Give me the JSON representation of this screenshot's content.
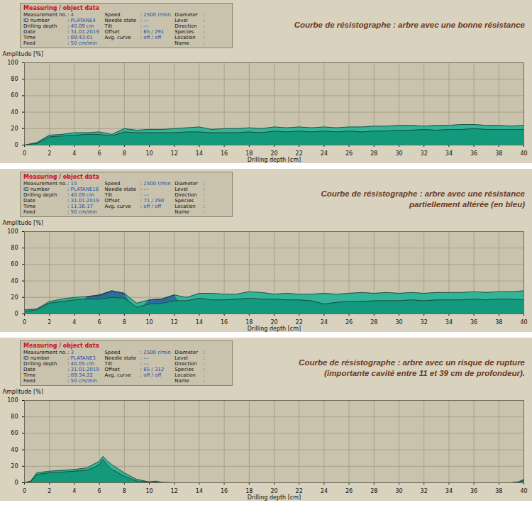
{
  "chart_data": [
    {
      "type": "area",
      "title": [
        "Courbe de résistographe : arbre avec une bonne résistance"
      ],
      "info_box": {
        "title": "Measuring / object data",
        "columns": [
          [
            {
              "label": "Measurement no.",
              "value": "4"
            },
            {
              "label": "ID number",
              "value": "PLATANE4"
            },
            {
              "label": "Drilling depth",
              "value": "40.09 cm"
            },
            {
              "label": "Date",
              "value": "31.01.2019"
            },
            {
              "label": "Time",
              "value": "09:43:01"
            },
            {
              "label": "Feed",
              "value": "50 cm/min"
            }
          ],
          [
            {
              "label": "Speed",
              "value": "2500 r/min"
            },
            {
              "label": "Needle state",
              "value": "---"
            },
            {
              "label": "Tilt",
              "value": "---"
            },
            {
              "label": "Offset",
              "value": "65 / 291"
            },
            {
              "label": "Avg. curve",
              "value": "off / off"
            }
          ],
          [
            {
              "label": "Diameter"
            },
            {
              "label": "Level"
            },
            {
              "label": "Direction"
            },
            {
              "label": "Species"
            },
            {
              "label": "Location"
            },
            {
              "label": "Name"
            }
          ]
        ]
      },
      "xlabel": "Drilling depth [cm]",
      "ylabel": "Amplitude [%]",
      "x": [
        0,
        1,
        2,
        3,
        4,
        5,
        6,
        7,
        8,
        9,
        10,
        11,
        12,
        13,
        14,
        15,
        16,
        17,
        18,
        19,
        20,
        21,
        22,
        23,
        24,
        25,
        26,
        27,
        28,
        29,
        30,
        31,
        32,
        33,
        34,
        35,
        36,
        37,
        38,
        39,
        40
      ],
      "series": [
        {
          "color": "#34b497",
          "values": [
            0,
            3,
            12,
            13,
            15,
            15,
            16,
            13,
            20,
            18,
            19,
            19,
            20,
            21,
            22,
            19,
            20,
            20,
            21,
            20,
            22,
            21,
            22,
            21,
            22,
            21,
            22,
            22,
            23,
            23,
            24,
            24,
            23,
            24,
            24,
            25,
            25,
            24,
            24,
            23,
            24
          ]
        },
        {
          "color": "#13997c",
          "values": [
            0,
            2,
            10,
            11,
            12,
            13,
            13,
            11,
            16,
            15,
            15,
            15,
            15,
            16,
            16,
            15,
            15,
            15,
            16,
            15,
            17,
            16,
            17,
            16,
            17,
            16,
            17,
            16,
            17,
            17,
            18,
            18,
            19,
            18,
            19,
            19,
            20,
            19,
            19,
            19,
            19
          ]
        }
      ],
      "xlim": [
        0,
        40
      ],
      "xticks": [
        0,
        2,
        4,
        6,
        8,
        10,
        12,
        14,
        16,
        18,
        20,
        22,
        24,
        26,
        28,
        30,
        32,
        34,
        36,
        38,
        40
      ],
      "ylim": [
        0,
        100
      ],
      "yticks": [
        0,
        20,
        40,
        60,
        80,
        100
      ],
      "grid": true
    },
    {
      "type": "area",
      "title": [
        "Courbe de résistographe : arbre avec une résistance",
        "partiellement altérée (en bleu)"
      ],
      "info_box": {
        "title": "Measuring / object data",
        "columns": [
          [
            {
              "label": "Measurement no.",
              "value": "15"
            },
            {
              "label": "ID number",
              "value": "PLATANE16"
            },
            {
              "label": "Drilling depth",
              "value": "40.09 cm"
            },
            {
              "label": "Date",
              "value": "31.01.2019"
            },
            {
              "label": "Time",
              "value": "11:36:17"
            },
            {
              "label": "Feed",
              "value": "50 cm/min"
            }
          ],
          [
            {
              "label": "Speed",
              "value": "2500 r/min"
            },
            {
              "label": "Needle state",
              "value": "---"
            },
            {
              "label": "Tilt",
              "value": "---"
            },
            {
              "label": "Offset",
              "value": "71 / 290"
            },
            {
              "label": "Avg. curve",
              "value": "off / off"
            }
          ],
          [
            {
              "label": "Diameter"
            },
            {
              "label": "Level"
            },
            {
              "label": "Direction"
            },
            {
              "label": "Species"
            },
            {
              "label": "Location"
            },
            {
              "label": "Name"
            }
          ]
        ]
      },
      "xlabel": "Drilling depth [cm]",
      "ylabel": "Amplitude [%]",
      "x": [
        0,
        1,
        2,
        3,
        4,
        5,
        6,
        7,
        8,
        9,
        10,
        11,
        12,
        13,
        14,
        15,
        16,
        17,
        18,
        19,
        20,
        21,
        22,
        23,
        24,
        25,
        26,
        27,
        28,
        29,
        30,
        31,
        32,
        33,
        34,
        35,
        36,
        37,
        38,
        39,
        40
      ],
      "series": [
        {
          "color": "#34b497",
          "values": [
            5,
            6,
            15,
            18,
            20,
            21,
            22,
            28,
            25,
            13,
            17,
            18,
            23,
            20,
            25,
            25,
            24,
            24,
            27,
            26,
            24,
            25,
            24,
            24,
            25,
            24,
            25,
            26,
            25,
            26,
            25,
            26,
            25,
            26,
            26,
            26,
            27,
            26,
            27,
            27,
            28
          ]
        },
        {
          "color": "#2a6e9e",
          "values": [
            null,
            null,
            null,
            null,
            null,
            21,
            23,
            28,
            25,
            null,
            17,
            18,
            23,
            null,
            null,
            null,
            null,
            null,
            null,
            null,
            null,
            null,
            null,
            null,
            null,
            null,
            null,
            null,
            null,
            null,
            null,
            null,
            null,
            null,
            null,
            null,
            null,
            null,
            null,
            null,
            null
          ]
        },
        {
          "color": "#13997c",
          "values": [
            3,
            5,
            13,
            15,
            17,
            18,
            18,
            20,
            19,
            8,
            12,
            13,
            16,
            16,
            19,
            17,
            17,
            18,
            19,
            18,
            18,
            17,
            17,
            16,
            12,
            14,
            15,
            15,
            16,
            16,
            16,
            17,
            16,
            17,
            17,
            17,
            18,
            17,
            18,
            18,
            17
          ]
        }
      ],
      "xlim": [
        0,
        40
      ],
      "xticks": [
        0,
        2,
        4,
        6,
        8,
        10,
        12,
        14,
        16,
        18,
        20,
        22,
        24,
        26,
        28,
        30,
        32,
        34,
        36,
        38,
        40
      ],
      "ylim": [
        0,
        100
      ],
      "yticks": [
        0,
        20,
        40,
        60,
        80,
        100
      ],
      "grid": true
    },
    {
      "type": "area",
      "title": [
        "Courbe de résistographe : arbre avec un risque de rupture",
        "(importante cavité entre 11 et 39 cm de profondeur)."
      ],
      "info_box": {
        "title": "Measuring / object data",
        "columns": [
          [
            {
              "label": "Measurement no.",
              "value": "3"
            },
            {
              "label": "ID number",
              "value": "PLATANE3"
            },
            {
              "label": "Drilling depth",
              "value": "40.05 cm"
            },
            {
              "label": "Date",
              "value": "31.01.2019"
            },
            {
              "label": "Time",
              "value": "09:34:22"
            },
            {
              "label": "Feed",
              "value": "50 cm/min"
            }
          ],
          [
            {
              "label": "Speed",
              "value": "2500 r/min"
            },
            {
              "label": "Needle state",
              "value": "---"
            },
            {
              "label": "Tilt",
              "value": "---"
            },
            {
              "label": "Offset",
              "value": "65 / 312"
            },
            {
              "label": "Avg. curve",
              "value": "off / off"
            }
          ],
          [
            {
              "label": "Diameter"
            },
            {
              "label": "Level"
            },
            {
              "label": "Direction"
            },
            {
              "label": "Species"
            },
            {
              "label": "Location"
            },
            {
              "label": "Name"
            }
          ]
        ]
      },
      "xlabel": "Drilling depth [cm]",
      "ylabel": "Amplitude [%]",
      "x": [
        0,
        0.5,
        1,
        2,
        3,
        4,
        5,
        5.5,
        6,
        6.3,
        6.6,
        7,
        7.5,
        8,
        9,
        10,
        10.5,
        11,
        12,
        16,
        20,
        24,
        28,
        32,
        36,
        39,
        39.6,
        40
      ],
      "series": [
        {
          "color": "#34b497",
          "values": [
            0,
            2,
            12,
            14,
            15,
            16,
            18,
            22,
            26,
            32,
            27,
            22,
            17,
            12,
            4,
            1,
            2,
            0.5,
            0,
            0,
            0,
            0,
            0,
            0,
            0,
            0,
            1,
            4
          ]
        },
        {
          "color": "#13997c",
          "values": [
            0,
            1,
            10,
            12,
            13,
            14,
            15,
            18,
            22,
            28,
            22,
            16,
            12,
            8,
            2,
            0.5,
            1,
            0,
            0,
            0,
            0,
            0,
            0,
            0,
            0,
            0,
            0.5,
            3
          ]
        }
      ],
      "xlim": [
        0,
        40
      ],
      "xticks": [
        0,
        2,
        4,
        6,
        8,
        10,
        12,
        14,
        16,
        18,
        20,
        22,
        24,
        26,
        28,
        30,
        32,
        34,
        36,
        38,
        40
      ],
      "ylim": [
        0,
        100
      ],
      "yticks": [
        0,
        20,
        40,
        60,
        80,
        100
      ],
      "grid": true
    }
  ]
}
